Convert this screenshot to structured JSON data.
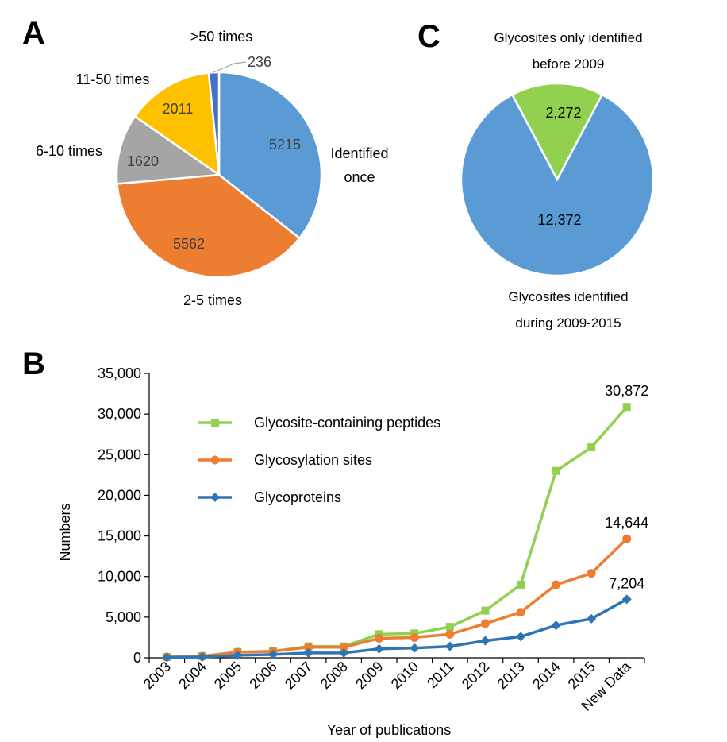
{
  "panels": {
    "A": "A",
    "B": "B",
    "C": "C"
  },
  "chart_data": [
    {
      "panel": "A",
      "type": "pie",
      "labels": [
        "Identified once",
        "2-5 times",
        "6-10 times",
        "11-50 times",
        ">50 times"
      ],
      "label_lines": [
        [
          "Identified",
          "once"
        ],
        [
          "2-5 times"
        ],
        [
          "6-10 times"
        ],
        [
          "11-50 times"
        ],
        [
          ">50 times"
        ]
      ],
      "values": [
        5215,
        5562,
        1620,
        2011,
        236
      ],
      "value_labels": [
        "5215",
        "5562",
        "1620",
        "2011",
        "236"
      ],
      "colors": [
        "#5B9BD5",
        "#ED7D31",
        "#A5A5A5",
        "#FFC000",
        "#4472C4"
      ]
    },
    {
      "panel": "B",
      "type": "line",
      "xlabel": "Year of publications",
      "ylabel": "Numbers",
      "ylim": [
        0,
        35000
      ],
      "yticks": [
        "0",
        "5,000",
        "10,000",
        "15,000",
        "20,000",
        "25,000",
        "30,000",
        "35,000"
      ],
      "categories": [
        "2003",
        "2004",
        "2005",
        "2006",
        "2007",
        "2008",
        "2009",
        "2010",
        "2011",
        "2012",
        "2013",
        "2014",
        "2015",
        "New Data"
      ],
      "legend_position": "top-left",
      "series": [
        {
          "name": "Glycosite-containing peptides",
          "color": "#92D050",
          "marker": "square",
          "values": [
            100,
            200,
            700,
            800,
            1400,
            1400,
            2900,
            3000,
            3800,
            5800,
            9000,
            23000,
            25900,
            30872
          ],
          "end_label": "30,872"
        },
        {
          "name": "Glycosylation sites",
          "color": "#ED7D31",
          "marker": "circle",
          "values": [
            100,
            200,
            700,
            800,
            1300,
            1300,
            2400,
            2500,
            2900,
            4200,
            5600,
            9000,
            10400,
            14644
          ],
          "end_label": "14,644"
        },
        {
          "name": "Glycoproteins",
          "color": "#2E75B6",
          "marker": "diamond",
          "values": [
            50,
            100,
            300,
            400,
            600,
            600,
            1100,
            1200,
            1400,
            2100,
            2600,
            4000,
            4800,
            7204
          ],
          "end_label": "7,204"
        }
      ]
    },
    {
      "panel": "C",
      "type": "pie",
      "labels": [
        "Glycosites only identified before 2009",
        "Glycosites identified during 2009-2015"
      ],
      "label_lines": [
        [
          "Glycosites only identified",
          "before 2009"
        ],
        [
          "Glycosites identified",
          "during 2009-2015"
        ]
      ],
      "values": [
        2272,
        12372
      ],
      "value_labels": [
        "2,272",
        "12,372"
      ],
      "colors": [
        "#92D050",
        "#5B9BD5"
      ]
    }
  ]
}
